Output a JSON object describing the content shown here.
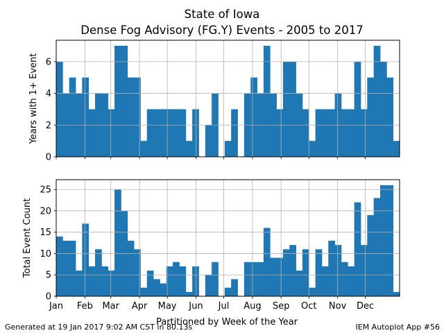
{
  "figure": {
    "title_line1": "State of Iowa",
    "title_line2": "Dense Fog Advisory (FG.Y) Events - 2005 to 2017",
    "xlabel": "Partitioned by Week of the Year",
    "footer_left": "Generated at 19 Jan 2017 9:02 AM CST in 80.13s",
    "footer_right": "IEM Autoplot App #56"
  },
  "colors": {
    "bar": "#1f77b4",
    "grid": "#b0b0b0"
  },
  "chart_data": [
    {
      "type": "bar",
      "ylabel": "Years with 1+ Event",
      "ylim": [
        0,
        7.35
      ],
      "yticks": [
        0,
        2,
        4,
        6
      ],
      "grid": true,
      "x_unit": "week of year",
      "xlim": [
        0,
        53
      ],
      "xticks": [
        {
          "label": "Jan",
          "week": 0
        },
        {
          "label": "Feb",
          "week": 4.43
        },
        {
          "label": "Mar",
          "week": 8.43
        },
        {
          "label": "Apr",
          "week": 12.86
        },
        {
          "label": "May",
          "week": 17.14
        },
        {
          "label": "Jun",
          "week": 21.57
        },
        {
          "label": "Jul",
          "week": 25.86
        },
        {
          "label": "Aug",
          "week": 30.29
        },
        {
          "label": "Sep",
          "week": 34.71
        },
        {
          "label": "Oct",
          "week": 39
        },
        {
          "label": "Nov",
          "week": 43.43
        },
        {
          "label": "Dec",
          "week": 47.71
        }
      ],
      "values": [
        6,
        4,
        5,
        4,
        5,
        3,
        4,
        4,
        3,
        7,
        7,
        5,
        5,
        1,
        3,
        3,
        3,
        3,
        3,
        3,
        1,
        3,
        0,
        2,
        4,
        0,
        1,
        3,
        0,
        4,
        5,
        4,
        7,
        4,
        3,
        6,
        6,
        4,
        3,
        1,
        3,
        3,
        3,
        4,
        3,
        3,
        6,
        3,
        5,
        7,
        6,
        5,
        1
      ]
    },
    {
      "type": "bar",
      "ylabel": "Total Event Count",
      "ylim": [
        0,
        27.3
      ],
      "yticks": [
        0,
        5,
        10,
        15,
        20,
        25
      ],
      "grid": true,
      "x_unit": "week of year",
      "xlim": [
        0,
        53
      ],
      "xticks": [
        {
          "label": "Jan",
          "week": 0
        },
        {
          "label": "Feb",
          "week": 4.43
        },
        {
          "label": "Mar",
          "week": 8.43
        },
        {
          "label": "Apr",
          "week": 12.86
        },
        {
          "label": "May",
          "week": 17.14
        },
        {
          "label": "Jun",
          "week": 21.57
        },
        {
          "label": "Jul",
          "week": 25.86
        },
        {
          "label": "Aug",
          "week": 30.29
        },
        {
          "label": "Sep",
          "week": 34.71
        },
        {
          "label": "Oct",
          "week": 39
        },
        {
          "label": "Nov",
          "week": 43.43
        },
        {
          "label": "Dec",
          "week": 47.71
        }
      ],
      "values": [
        14,
        13,
        13,
        6,
        17,
        7,
        11,
        7,
        6,
        25,
        20,
        13,
        11,
        2,
        6,
        4,
        3,
        7,
        8,
        7,
        1,
        7,
        0,
        5,
        8,
        0,
        2,
        4,
        0,
        8,
        8,
        8,
        16,
        9,
        9,
        11,
        12,
        6,
        11,
        2,
        11,
        7,
        13,
        12,
        8,
        7,
        22,
        12,
        19,
        23,
        26,
        26,
        1
      ]
    }
  ]
}
